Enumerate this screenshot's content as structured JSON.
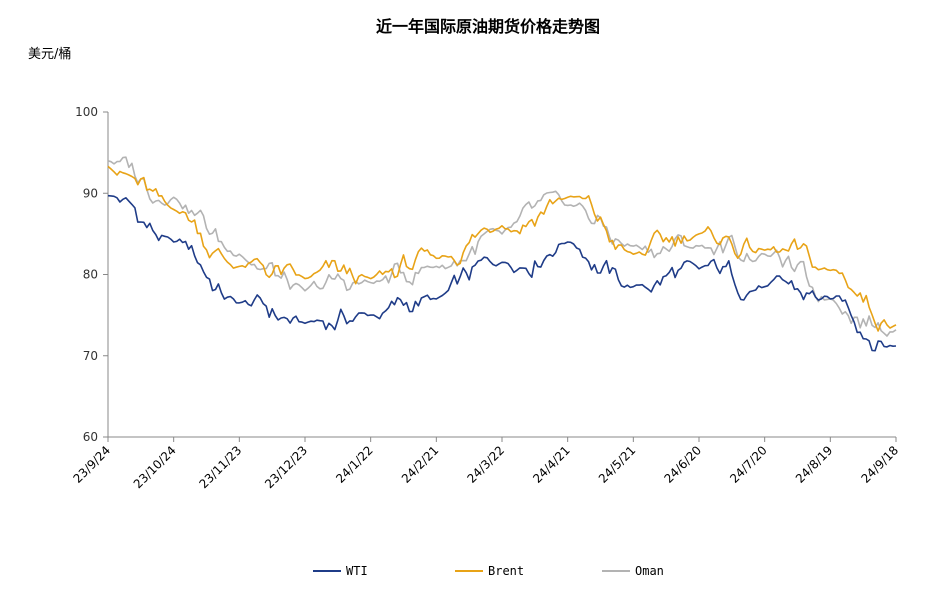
{
  "chart_data": {
    "type": "line",
    "title": "近一年国际原油期货价格走势图",
    "ylabel": "美元/桶",
    "xlabel": "",
    "ylim": [
      60,
      100
    ],
    "yticks": [
      60,
      70,
      80,
      90,
      100
    ],
    "grid": false,
    "legend_position": "bottom",
    "x": [
      "23/9/24",
      "23/10/24",
      "23/11/23",
      "23/12/23",
      "24/1/22",
      "24/2/21",
      "24/3/22",
      "24/4/21",
      "24/5/21",
      "24/6/20",
      "24/7/20",
      "24/8/19",
      "24/9/18"
    ],
    "series": [
      {
        "name": "WTI",
        "color": "#1F3C88",
        "values": [
          89.7,
          84.0,
          76.5,
          74.0,
          75.0,
          77.0,
          81.5,
          84.0,
          78.5,
          80.7,
          78.5,
          77.0,
          71.2
        ]
      },
      {
        "name": "Brent",
        "color": "#E8A317",
        "values": [
          93.3,
          88.0,
          81.0,
          79.5,
          79.5,
          82.0,
          86.0,
          89.5,
          82.5,
          85.0,
          83.0,
          80.5,
          73.8
        ]
      },
      {
        "name": "Oman",
        "color": "#B3B3B3",
        "values": [
          94.0,
          89.5,
          82.5,
          78.0,
          79.0,
          81.0,
          85.0,
          88.5,
          83.5,
          83.5,
          82.5,
          77.0,
          73.2
        ]
      }
    ]
  }
}
